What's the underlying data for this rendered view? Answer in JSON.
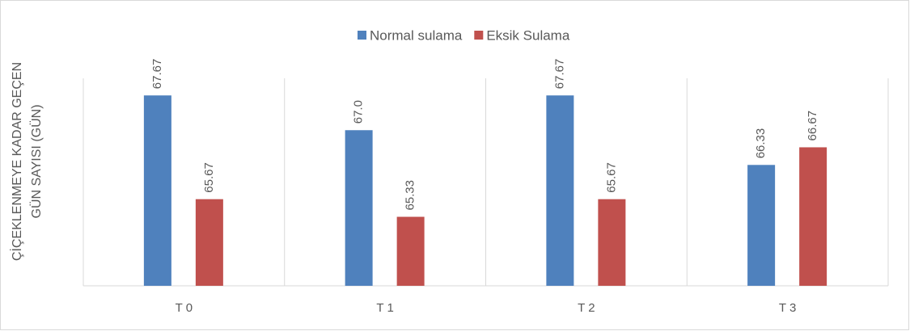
{
  "chart_data": {
    "type": "bar",
    "y_label": [
      "ÇİÇEKLENMEYE KADAR GEÇEN",
      "GÜN SAYISI (GÜN)"
    ],
    "categories": [
      "T 0",
      "T 1",
      "T 2",
      "T 3"
    ],
    "series": [
      {
        "name": "Normal sulama",
        "color": "#4f81bd",
        "values": [
          67.67,
          67,
          67.67,
          66.33
        ],
        "value_labels": [
          "67.67",
          "67.0",
          "67.67",
          "66.33"
        ]
      },
      {
        "name": "Eksik Sulama",
        "color": "#c0504d",
        "values": [
          65.67,
          65.33,
          65.67,
          66.67
        ],
        "value_labels": [
          "65.67",
          "65.33",
          "65.67",
          "66.67"
        ]
      }
    ],
    "ylim": [
      64,
      68
    ],
    "legend": "top"
  }
}
